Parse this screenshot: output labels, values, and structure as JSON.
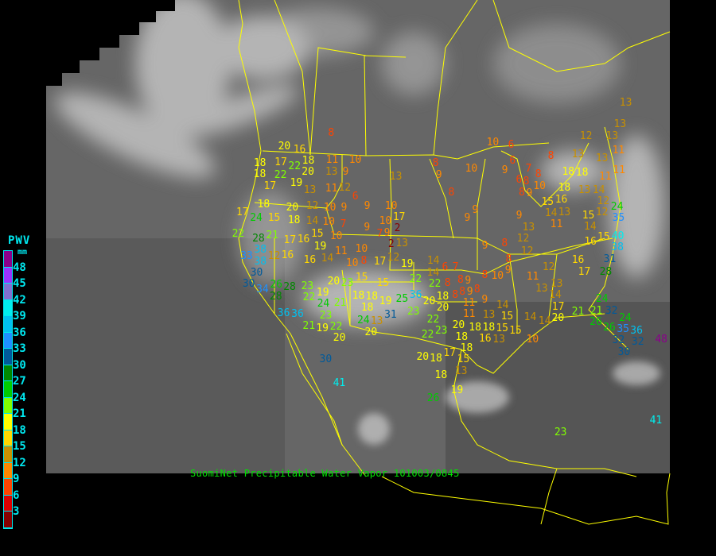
{
  "caption": "SuomiNet Precipitable Water Vapor 101003/0845",
  "legend": {
    "title": "PWV",
    "unit": "mm",
    "ticks": [
      "48",
      "45",
      "42",
      "39",
      "36",
      "33",
      "30",
      "27",
      "24",
      "21",
      "18",
      "15",
      "12",
      "9",
      "6",
      "3"
    ],
    "colors": [
      "#8b008b",
      "#9933ff",
      "#8070d0",
      "#00eeee",
      "#00c0f0",
      "#1e90ff",
      "#005a9a",
      "#008800",
      "#00cc00",
      "#80ff00",
      "#ffff00",
      "#ffd700",
      "#c89000",
      "#ff8800",
      "#ff4400",
      "#dd0000",
      "#880000"
    ]
  },
  "map_colors": {
    "border": "#ffff00",
    "land": "#6a6a6a",
    "cloud": "#d8d8d8"
  },
  "stations": [
    8,
    20,
    16,
    18,
    17,
    22,
    18,
    20,
    11,
    10,
    13,
    9,
    18,
    22,
    17,
    19,
    13,
    11,
    12,
    6,
    13,
    18,
    20,
    12,
    10,
    9,
    9,
    10,
    17,
    24,
    15,
    18,
    14,
    10,
    7,
    9,
    10,
    2,
    17,
    22,
    28,
    21,
    17,
    16,
    15,
    10,
    7,
    9,
    2,
    13,
    38,
    33,
    12,
    16,
    19,
    11,
    10,
    16,
    14,
    10,
    8,
    17,
    12,
    19,
    38,
    30,
    30,
    34,
    26,
    28,
    28,
    23,
    22,
    19,
    20,
    23,
    15,
    15,
    22,
    22,
    14,
    6,
    7,
    18,
    18,
    19,
    21,
    18,
    31,
    25,
    36,
    20,
    18,
    20,
    23,
    24,
    23,
    36,
    36,
    24,
    13,
    21,
    19,
    22,
    20,
    20,
    22,
    22,
    23,
    20,
    18,
    18,
    30,
    41,
    20,
    18,
    17,
    15,
    13,
    18,
    19,
    26,
    8,
    8,
    9,
    8,
    8,
    8,
    9,
    11,
    10,
    6,
    8,
    6,
    7,
    8,
    9,
    10,
    9,
    12,
    13,
    11,
    13,
    13,
    18,
    18,
    11,
    11,
    6,
    8,
    8,
    9,
    8,
    10,
    16,
    18,
    13,
    14,
    8,
    15,
    12,
    9,
    9,
    9,
    14,
    13,
    11,
    12,
    24,
    35,
    15,
    14,
    13,
    12,
    9,
    8,
    15,
    16,
    40,
    38,
    31,
    12,
    14,
    8,
    16,
    12,
    28,
    17,
    9,
    10,
    8,
    11,
    13,
    13,
    14,
    17,
    9,
    11,
    13,
    14,
    15,
    14,
    14,
    20,
    21,
    21,
    24,
    32,
    26,
    24,
    26,
    35,
    36,
    32,
    32,
    30,
    15,
    15,
    10,
    18,
    18,
    16,
    13,
    13,
    13,
    41,
    48,
    23
  ]
}
